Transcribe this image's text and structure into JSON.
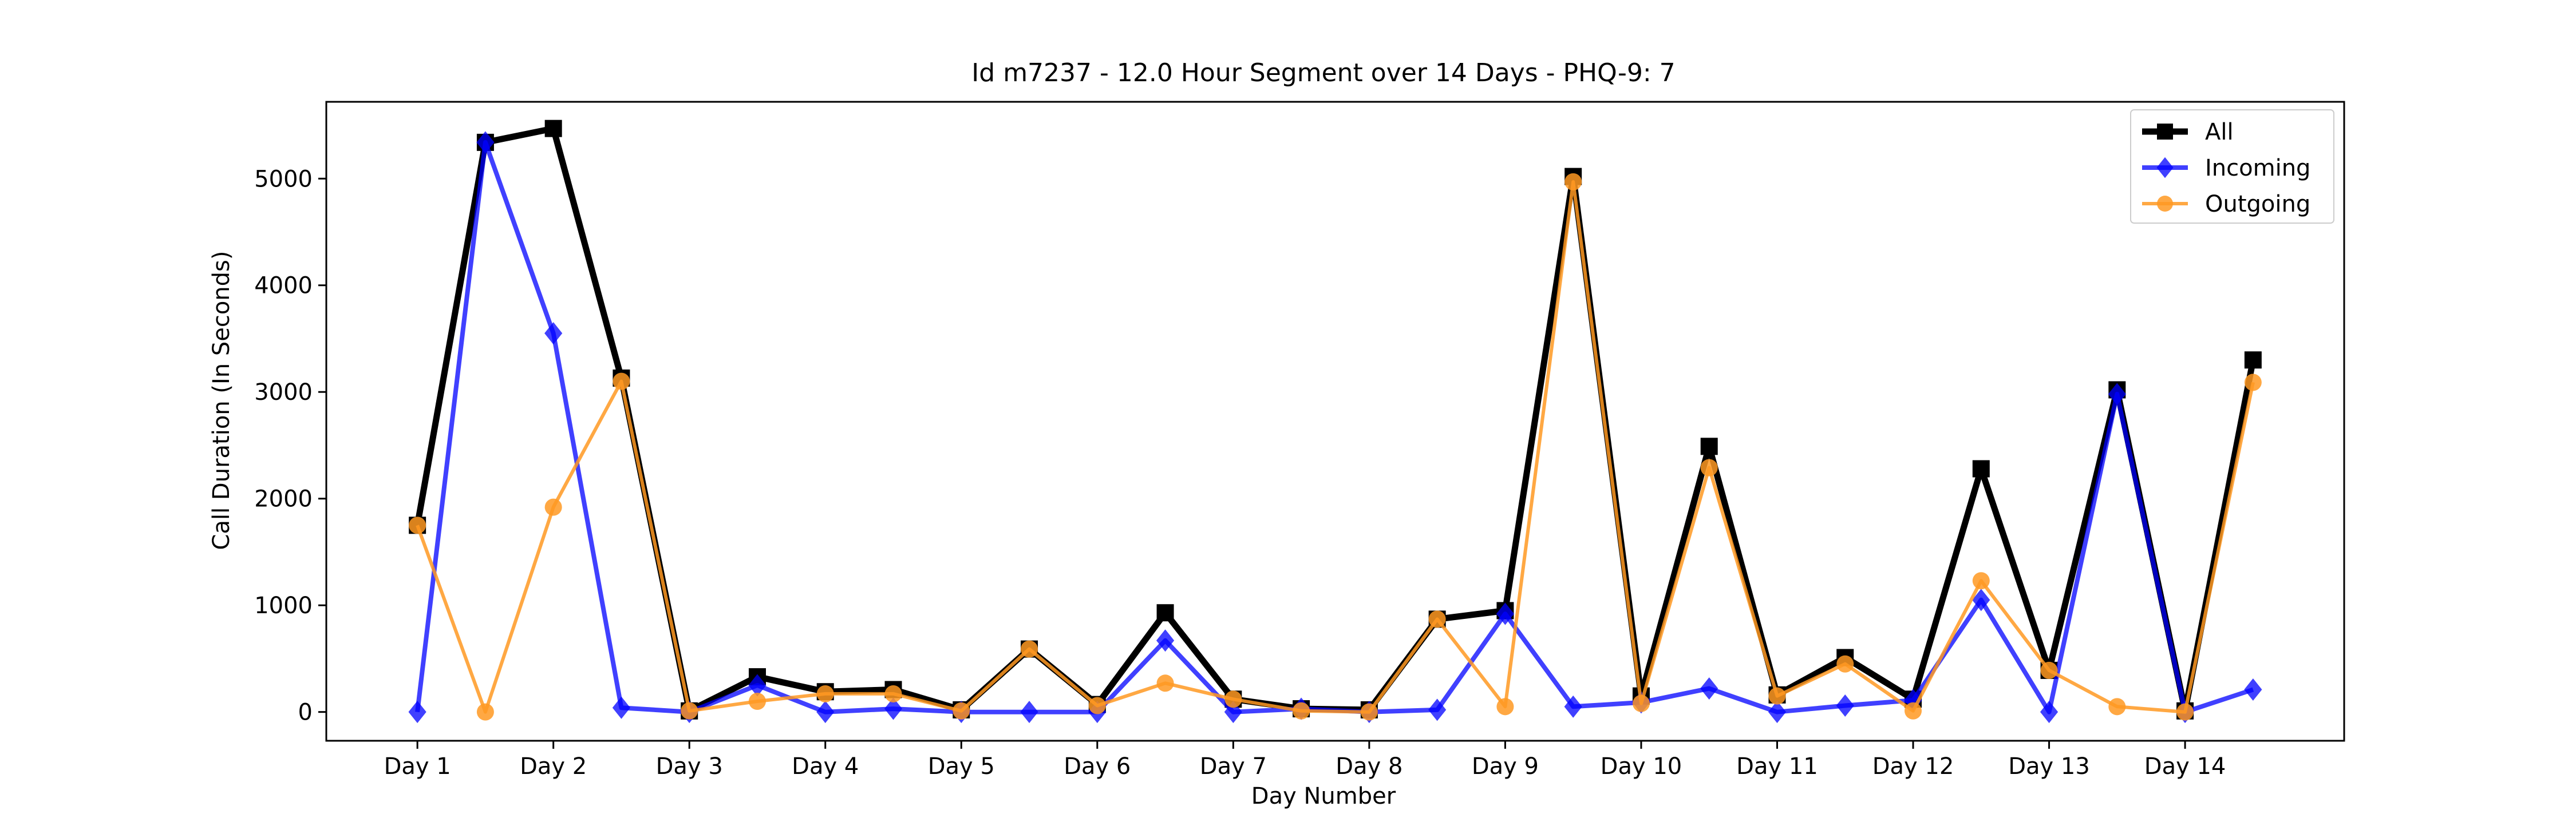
{
  "chart_data": {
    "type": "line",
    "title": "Id m7237 - 12.0 Hour Segment over 14 Days - PHQ-9: 7",
    "xlabel": "Day Number",
    "ylabel": "Call Duration (In Seconds)",
    "x": [
      1,
      1.5,
      2,
      2.5,
      3,
      3.5,
      4,
      4.5,
      5,
      5.5,
      6,
      6.5,
      7,
      7.5,
      8,
      8.5,
      9,
      9.5,
      10,
      10.5,
      11,
      11.5,
      12,
      12.5,
      13,
      13.5,
      14,
      14.5
    ],
    "x_ticks": [
      1,
      2,
      3,
      4,
      5,
      6,
      7,
      8,
      9,
      10,
      11,
      12,
      13,
      14
    ],
    "x_tick_labels": [
      "Day 1",
      "Day 2",
      "Day 3",
      "Day 4",
      "Day 5",
      "Day 6",
      "Day 7",
      "Day 8",
      "Day 9",
      "Day 10",
      "Day 11",
      "Day 12",
      "Day 13",
      "Day 14"
    ],
    "xlim": [
      0.33,
      15.17
    ],
    "ylim": [
      -270,
      5720
    ],
    "y_ticks": [
      0,
      1000,
      2000,
      3000,
      4000,
      5000
    ],
    "y_tick_labels": [
      "0",
      "1000",
      "2000",
      "3000",
      "4000",
      "5000"
    ],
    "grid": false,
    "legend_position": "top-right",
    "series": [
      {
        "name": "All",
        "color": "#000000",
        "marker": "square",
        "values": [
          1750,
          5340,
          5470,
          3130,
          10,
          330,
          190,
          210,
          20,
          590,
          70,
          930,
          120,
          30,
          20,
          870,
          950,
          5020,
          150,
          2490,
          160,
          510,
          120,
          2280,
          390,
          3020,
          10,
          3300
        ]
      },
      {
        "name": "Incoming",
        "color": "#0000ff",
        "marker": "diamond",
        "values": [
          0,
          5340,
          3550,
          40,
          0,
          250,
          0,
          30,
          0,
          0,
          0,
          670,
          0,
          30,
          0,
          20,
          920,
          50,
          90,
          220,
          0,
          60,
          110,
          1050,
          0,
          2980,
          0,
          210
        ]
      },
      {
        "name": "Outgoing",
        "color": "#ff9922",
        "marker": "circle",
        "values": [
          1750,
          0,
          1920,
          3100,
          10,
          100,
          170,
          170,
          10,
          590,
          60,
          270,
          120,
          10,
          0,
          870,
          50,
          4970,
          80,
          2290,
          150,
          450,
          10,
          1230,
          390,
          50,
          0,
          3090
        ]
      }
    ]
  }
}
